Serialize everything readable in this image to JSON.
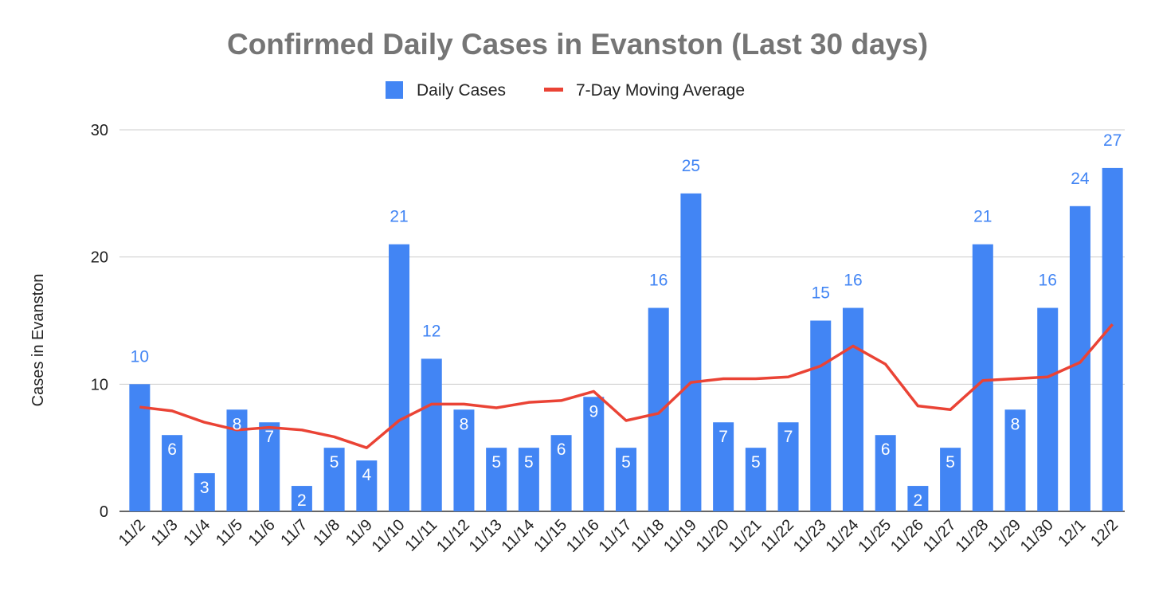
{
  "chart_data": {
    "type": "bar",
    "title": "Confirmed Daily Cases in Evanston (Last 30 days)",
    "xlabel": "",
    "ylabel": "Cases in Evanston",
    "ylim": [
      0,
      30
    ],
    "yticks": [
      0,
      10,
      20,
      30
    ],
    "grid": true,
    "legend_placement": "top",
    "categories": [
      "11/2",
      "11/3",
      "11/4",
      "11/5",
      "11/6",
      "11/7",
      "11/8",
      "11/9",
      "11/10",
      "11/11",
      "11/12",
      "11/13",
      "11/14",
      "11/15",
      "11/16",
      "11/17",
      "11/18",
      "11/19",
      "11/20",
      "11/21",
      "11/22",
      "11/23",
      "11/24",
      "11/25",
      "11/26",
      "11/27",
      "11/28",
      "11/29",
      "11/30",
      "12/1",
      "12/2"
    ],
    "series": [
      {
        "name": "Daily Cases",
        "type": "bar",
        "color": "#4285f4",
        "values": [
          10,
          6,
          3,
          8,
          7,
          2,
          5,
          4,
          21,
          12,
          8,
          5,
          5,
          6,
          9,
          5,
          16,
          25,
          7,
          5,
          7,
          15,
          16,
          6,
          2,
          5,
          21,
          8,
          16,
          24,
          27
        ]
      },
      {
        "name": "7-Day Moving Average",
        "type": "line",
        "color": "#ea4335",
        "values": [
          8.2,
          7.9,
          7.0,
          6.4,
          6.6,
          6.4,
          5.86,
          5.0,
          7.14,
          8.43,
          8.43,
          8.14,
          8.57,
          8.71,
          9.43,
          7.14,
          7.71,
          10.14,
          10.43,
          10.43,
          10.57,
          11.43,
          13.0,
          11.57,
          8.29,
          8.0,
          10.29,
          10.43,
          10.57,
          11.71,
          14.71
        ]
      }
    ],
    "data_label_color_outside": "#4285f4",
    "data_label_color_inside": "#ffffff"
  }
}
